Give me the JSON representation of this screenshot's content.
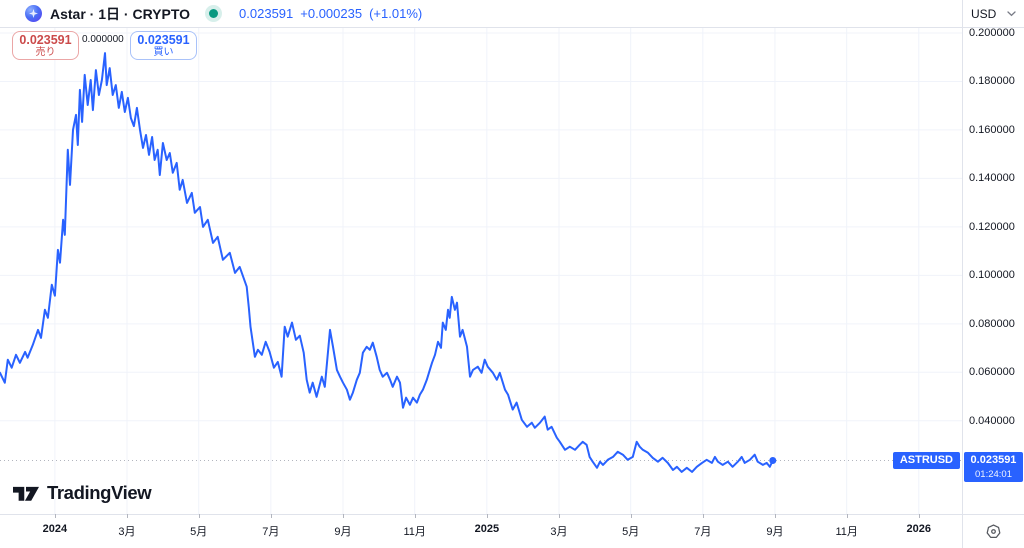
{
  "header": {
    "title": "Astar · 1日 · CRYPTO",
    "price": "0.023591",
    "change": "+0.000235",
    "change_pct": "(+1.01%)",
    "currency_selector": "USD"
  },
  "buttons": {
    "sell_price": "0.023591",
    "sell_label": "売り",
    "buy_price": "0.023591",
    "buy_label": "買い"
  },
  "high_marker": "0.000000",
  "badge": {
    "symbol": "ASTRUSD",
    "price": "0.023591",
    "countdown": "01:24:01"
  },
  "footer": {
    "brand": "TradingView"
  },
  "colors": {
    "accent_blue": "#2962ff",
    "sell_red": "#cb4a4a",
    "open_green": "#089981",
    "grid": "#f0f3fa",
    "border": "#e0e3eb",
    "text": "#131722",
    "dotted": "#b2b5be"
  },
  "chart_data": {
    "type": "line",
    "symbol": "ASTRUSD",
    "interval": "1日",
    "legend_position": "none",
    "grid": true,
    "x_domain": [
      2023.873,
      2026.1
    ],
    "y_domain": [
      0.00153,
      0.21361
    ],
    "current_price": 0.023591,
    "y_ticks": [
      {
        "value": 0.2,
        "label": "0.200000"
      },
      {
        "value": 0.18,
        "label": "0.180000"
      },
      {
        "value": 0.16,
        "label": "0.160000"
      },
      {
        "value": 0.14,
        "label": "0.140000"
      },
      {
        "value": 0.12,
        "label": "0.120000"
      },
      {
        "value": 0.1,
        "label": "0.100000"
      },
      {
        "value": 0.08,
        "label": "0.080000"
      },
      {
        "value": 0.06,
        "label": "0.060000"
      },
      {
        "value": 0.04,
        "label": "0.040000"
      }
    ],
    "x_ticks": [
      {
        "value": 2024.0,
        "label": "2024",
        "bold": true
      },
      {
        "value": 2024.167,
        "label": "3月"
      },
      {
        "value": 2024.333,
        "label": "5月"
      },
      {
        "value": 2024.5,
        "label": "7月"
      },
      {
        "value": 2024.667,
        "label": "9月"
      },
      {
        "value": 2024.833,
        "label": "11月"
      },
      {
        "value": 2025.0,
        "label": "2025",
        "bold": true
      },
      {
        "value": 2025.167,
        "label": "3月"
      },
      {
        "value": 2025.333,
        "label": "5月"
      },
      {
        "value": 2025.5,
        "label": "7月"
      },
      {
        "value": 2025.667,
        "label": "9月"
      },
      {
        "value": 2025.833,
        "label": "11月"
      },
      {
        "value": 2026.0,
        "label": "2026",
        "bold": true
      }
    ],
    "points": [
      [
        2023.873,
        0.0598
      ],
      [
        2023.884,
        0.0557
      ],
      [
        2023.891,
        0.0652
      ],
      [
        2023.9,
        0.0619
      ],
      [
        2023.91,
        0.0672
      ],
      [
        2023.919,
        0.0639
      ],
      [
        2023.931,
        0.0684
      ],
      [
        2023.937,
        0.066
      ],
      [
        2023.949,
        0.0713
      ],
      [
        2023.961,
        0.0775
      ],
      [
        2023.968,
        0.0742
      ],
      [
        2023.977,
        0.0858
      ],
      [
        2023.984,
        0.0825
      ],
      [
        2023.993,
        0.0961
      ],
      [
        2024.0,
        0.0916
      ],
      [
        2024.007,
        0.1105
      ],
      [
        2024.012,
        0.1052
      ],
      [
        2024.019,
        0.1229
      ],
      [
        2024.023,
        0.1167
      ],
      [
        2024.03,
        0.1518
      ],
      [
        2024.035,
        0.1373
      ],
      [
        2024.042,
        0.16
      ],
      [
        2024.049,
        0.1662
      ],
      [
        2024.053,
        0.1538
      ],
      [
        2024.058,
        0.1765
      ],
      [
        2024.063,
        0.1633
      ],
      [
        2024.069,
        0.1827
      ],
      [
        2024.076,
        0.1703
      ],
      [
        2024.083,
        0.1806
      ],
      [
        2024.088,
        0.1682
      ],
      [
        2024.095,
        0.1847
      ],
      [
        2024.102,
        0.1744
      ],
      [
        2024.109,
        0.1806
      ],
      [
        2024.116,
        0.1917
      ],
      [
        2024.12,
        0.1785
      ],
      [
        2024.127,
        0.1855
      ],
      [
        2024.134,
        0.1744
      ],
      [
        2024.141,
        0.1785
      ],
      [
        2024.148,
        0.1691
      ],
      [
        2024.155,
        0.1757
      ],
      [
        2024.162,
        0.1674
      ],
      [
        2024.169,
        0.1732
      ],
      [
        2024.176,
        0.1649
      ],
      [
        2024.183,
        0.1616
      ],
      [
        2024.19,
        0.1691
      ],
      [
        2024.197,
        0.16
      ],
      [
        2024.204,
        0.1526
      ],
      [
        2024.211,
        0.1579
      ],
      [
        2024.218,
        0.1497
      ],
      [
        2024.225,
        0.1571
      ],
      [
        2024.231,
        0.1476
      ],
      [
        2024.238,
        0.1518
      ],
      [
        2024.243,
        0.1414
      ],
      [
        2024.25,
        0.1546
      ],
      [
        2024.259,
        0.1476
      ],
      [
        2024.266,
        0.1505
      ],
      [
        2024.273,
        0.1423
      ],
      [
        2024.282,
        0.1464
      ],
      [
        2024.289,
        0.1353
      ],
      [
        2024.296,
        0.1394
      ],
      [
        2024.306,
        0.1299
      ],
      [
        2024.317,
        0.134
      ],
      [
        2024.324,
        0.1258
      ],
      [
        2024.336,
        0.1282
      ],
      [
        2024.343,
        0.12
      ],
      [
        2024.354,
        0.1229
      ],
      [
        2024.366,
        0.1134
      ],
      [
        2024.377,
        0.1159
      ],
      [
        2024.389,
        0.1064
      ],
      [
        2024.405,
        0.1093
      ],
      [
        2024.417,
        0.101
      ],
      [
        2024.428,
        0.1035
      ],
      [
        2024.444,
        0.0953
      ],
      [
        2024.449,
        0.0868
      ],
      [
        2024.453,
        0.0788
      ],
      [
        2024.463,
        0.0664
      ],
      [
        2024.47,
        0.0693
      ],
      [
        2024.479,
        0.0672
      ],
      [
        2024.488,
        0.0726
      ],
      [
        2024.497,
        0.0684
      ],
      [
        2024.507,
        0.0619
      ],
      [
        2024.516,
        0.0643
      ],
      [
        2024.525,
        0.0582
      ],
      [
        2024.532,
        0.0788
      ],
      [
        2024.539,
        0.0747
      ],
      [
        2024.549,
        0.0805
      ],
      [
        2024.558,
        0.0734
      ],
      [
        2024.567,
        0.0751
      ],
      [
        2024.576,
        0.0681
      ],
      [
        2024.583,
        0.0569
      ],
      [
        2024.59,
        0.0516
      ],
      [
        2024.597,
        0.0557
      ],
      [
        2024.606,
        0.0499
      ],
      [
        2024.618,
        0.0582
      ],
      [
        2024.625,
        0.054
      ],
      [
        2024.637,
        0.0775
      ],
      [
        2024.644,
        0.0705
      ],
      [
        2024.653,
        0.061
      ],
      [
        2024.66,
        0.0582
      ],
      [
        2024.667,
        0.0557
      ],
      [
        2024.676,
        0.0528
      ],
      [
        2024.683,
        0.0487
      ],
      [
        2024.69,
        0.0516
      ],
      [
        2024.699,
        0.0569
      ],
      [
        2024.706,
        0.0598
      ],
      [
        2024.713,
        0.0681
      ],
      [
        2024.722,
        0.0705
      ],
      [
        2024.729,
        0.0693
      ],
      [
        2024.736,
        0.0722
      ],
      [
        2024.745,
        0.0664
      ],
      [
        2024.752,
        0.061
      ],
      [
        2024.759,
        0.0582
      ],
      [
        2024.769,
        0.0598
      ],
      [
        2024.776,
        0.0569
      ],
      [
        2024.782,
        0.054
      ],
      [
        2024.792,
        0.0582
      ],
      [
        2024.799,
        0.0557
      ],
      [
        2024.806,
        0.0454
      ],
      [
        2024.813,
        0.0495
      ],
      [
        2024.822,
        0.0466
      ],
      [
        2024.829,
        0.0495
      ],
      [
        2024.838,
        0.0475
      ],
      [
        2024.845,
        0.0508
      ],
      [
        2024.852,
        0.0528
      ],
      [
        2024.861,
        0.0569
      ],
      [
        2024.868,
        0.061
      ],
      [
        2024.873,
        0.0639
      ],
      [
        2024.88,
        0.0672
      ],
      [
        2024.887,
        0.0726
      ],
      [
        2024.894,
        0.0701
      ],
      [
        2024.898,
        0.0805
      ],
      [
        2024.905,
        0.0775
      ],
      [
        2024.91,
        0.0858
      ],
      [
        2024.914,
        0.0825
      ],
      [
        2024.919,
        0.0911
      ],
      [
        2024.926,
        0.0858
      ],
      [
        2024.931,
        0.0887
      ],
      [
        2024.938,
        0.0747
      ],
      [
        2024.944,
        0.0775
      ],
      [
        2024.954,
        0.0705
      ],
      [
        2024.961,
        0.0582
      ],
      [
        2024.968,
        0.061
      ],
      [
        2024.979,
        0.0623
      ],
      [
        2024.988,
        0.0598
      ],
      [
        2024.995,
        0.0652
      ],
      [
        2025.002,
        0.0623
      ],
      [
        2025.014,
        0.0598
      ],
      [
        2025.023,
        0.0569
      ],
      [
        2025.03,
        0.0598
      ],
      [
        2025.042,
        0.0528
      ],
      [
        2025.049,
        0.0508
      ],
      [
        2025.06,
        0.0446
      ],
      [
        2025.069,
        0.0475
      ],
      [
        2025.081,
        0.0404
      ],
      [
        2025.093,
        0.0375
      ],
      [
        2025.104,
        0.0392
      ],
      [
        2025.111,
        0.0371
      ],
      [
        2025.123,
        0.0392
      ],
      [
        2025.134,
        0.0417
      ],
      [
        2025.141,
        0.0363
      ],
      [
        2025.15,
        0.0375
      ],
      [
        2025.162,
        0.033
      ],
      [
        2025.169,
        0.0313
      ],
      [
        2025.181,
        0.028
      ],
      [
        2025.192,
        0.0293
      ],
      [
        2025.204,
        0.028
      ],
      [
        2025.215,
        0.0301
      ],
      [
        2025.222,
        0.0313
      ],
      [
        2025.231,
        0.0301
      ],
      [
        2025.238,
        0.0251
      ],
      [
        2025.245,
        0.0231
      ],
      [
        2025.255,
        0.0206
      ],
      [
        2025.262,
        0.0231
      ],
      [
        2025.269,
        0.0218
      ],
      [
        2025.28,
        0.0239
      ],
      [
        2025.292,
        0.0251
      ],
      [
        2025.303,
        0.0272
      ],
      [
        2025.315,
        0.026
      ],
      [
        2025.326,
        0.0239
      ],
      [
        2025.338,
        0.0251
      ],
      [
        2025.347,
        0.0313
      ],
      [
        2025.354,
        0.0293
      ],
      [
        2025.361,
        0.028
      ],
      [
        2025.373,
        0.0268
      ],
      [
        2025.384,
        0.0247
      ],
      [
        2025.396,
        0.0231
      ],
      [
        2025.407,
        0.0247
      ],
      [
        2025.419,
        0.0226
      ],
      [
        2025.431,
        0.0197
      ],
      [
        2025.44,
        0.021
      ],
      [
        2025.451,
        0.0189
      ],
      [
        2025.463,
        0.0206
      ],
      [
        2025.475,
        0.0189
      ],
      [
        2025.486,
        0.021
      ],
      [
        2025.498,
        0.0226
      ],
      [
        2025.509,
        0.0239
      ],
      [
        2025.521,
        0.0226
      ],
      [
        2025.528,
        0.0251
      ],
      [
        2025.535,
        0.0231
      ],
      [
        2025.546,
        0.0218
      ],
      [
        2025.558,
        0.0231
      ],
      [
        2025.569,
        0.021
      ],
      [
        2025.581,
        0.0231
      ],
      [
        2025.59,
        0.0251
      ],
      [
        2025.597,
        0.0226
      ],
      [
        2025.609,
        0.0239
      ],
      [
        2025.62,
        0.026
      ],
      [
        2025.627,
        0.0231
      ],
      [
        2025.639,
        0.0218
      ],
      [
        2025.648,
        0.0226
      ],
      [
        2025.655,
        0.021
      ],
      [
        2025.662,
        0.023591
      ]
    ]
  }
}
